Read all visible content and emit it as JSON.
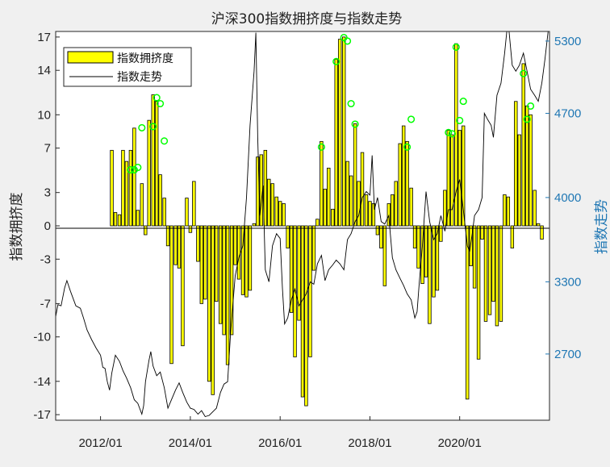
{
  "chart_data": {
    "type": "bar+line",
    "title": "沪深300指数拥挤度与指数走势",
    "left_axis": {
      "label": "指数拥挤度",
      "ticks": [
        17,
        14,
        10,
        7,
        3,
        0,
        -3,
        -7,
        -10,
        -14,
        -17
      ],
      "ylim": [
        -17.5,
        17.5
      ]
    },
    "right_axis": {
      "label": "指数走势",
      "ticks": [
        5300,
        4700,
        4000,
        3300,
        2700
      ],
      "ylim": [
        2150,
        5380
      ],
      "color": "#1f77b4"
    },
    "x_axis": {
      "ticks": [
        "2012/01",
        "2014/01",
        "2016/01",
        "2018/01",
        "2020/01"
      ],
      "xlim": [
        2011.0,
        2022.0
      ]
    },
    "legend": {
      "location": "top-left",
      "entries": [
        "指数拥挤度",
        "指数走势"
      ]
    },
    "bar_color": "#ffff00",
    "line_color": "#000000",
    "marker_color": "#00ff00",
    "crowding_bars": [
      {
        "t": 2012.25,
        "v": 6.8
      },
      {
        "t": 2012.33,
        "v": 1.2
      },
      {
        "t": 2012.42,
        "v": 1.0
      },
      {
        "t": 2012.5,
        "v": 6.8
      },
      {
        "t": 2012.58,
        "v": 5.8
      },
      {
        "t": 2012.67,
        "v": 6.8
      },
      {
        "t": 2012.75,
        "v": 8.8
      },
      {
        "t": 2012.83,
        "v": 1.4
      },
      {
        "t": 2012.92,
        "v": 3.8
      },
      {
        "t": 2013.0,
        "v": -0.8
      },
      {
        "t": 2013.08,
        "v": 9.5
      },
      {
        "t": 2013.17,
        "v": 11.8
      },
      {
        "t": 2013.25,
        "v": 11.2
      },
      {
        "t": 2013.33,
        "v": 4.6
      },
      {
        "t": 2013.42,
        "v": 2.5
      },
      {
        "t": 2013.5,
        "v": -1.8
      },
      {
        "t": 2013.58,
        "v": -12.4
      },
      {
        "t": 2013.67,
        "v": -3.5
      },
      {
        "t": 2013.75,
        "v": -3.8
      },
      {
        "t": 2013.83,
        "v": -10.8
      },
      {
        "t": 2013.92,
        "v": 2.5
      },
      {
        "t": 2014.0,
        "v": -0.6
      },
      {
        "t": 2014.08,
        "v": 4.0
      },
      {
        "t": 2014.17,
        "v": -3.2
      },
      {
        "t": 2014.25,
        "v": -7.0
      },
      {
        "t": 2014.33,
        "v": -6.6
      },
      {
        "t": 2014.42,
        "v": -14.0
      },
      {
        "t": 2014.5,
        "v": -15.2
      },
      {
        "t": 2014.58,
        "v": -6.8
      },
      {
        "t": 2014.67,
        "v": -8.8
      },
      {
        "t": 2014.75,
        "v": -9.8
      },
      {
        "t": 2014.83,
        "v": -12.5
      },
      {
        "t": 2014.92,
        "v": -9.8
      },
      {
        "t": 2015.0,
        "v": -3.5
      },
      {
        "t": 2015.08,
        "v": -4.8
      },
      {
        "t": 2015.17,
        "v": -6.2
      },
      {
        "t": 2015.25,
        "v": -6.4
      },
      {
        "t": 2015.33,
        "v": -5.8
      },
      {
        "t": 2015.42,
        "v": 0.2
      },
      {
        "t": 2015.5,
        "v": 6.2
      },
      {
        "t": 2015.58,
        "v": 6.4
      },
      {
        "t": 2015.67,
        "v": 6.8
      },
      {
        "t": 2015.75,
        "v": 4.2
      },
      {
        "t": 2015.83,
        "v": 3.8
      },
      {
        "t": 2015.92,
        "v": 2.6
      },
      {
        "t": 2016.0,
        "v": 2.2
      },
      {
        "t": 2016.08,
        "v": 2.0
      },
      {
        "t": 2016.17,
        "v": -2.0
      },
      {
        "t": 2016.25,
        "v": -7.8
      },
      {
        "t": 2016.33,
        "v": -11.8
      },
      {
        "t": 2016.42,
        "v": -8.5
      },
      {
        "t": 2016.5,
        "v": -15.4
      },
      {
        "t": 2016.58,
        "v": -16.2
      },
      {
        "t": 2016.67,
        "v": -11.8
      },
      {
        "t": 2016.75,
        "v": -4.0
      },
      {
        "t": 2016.83,
        "v": 0.6
      },
      {
        "t": 2016.92,
        "v": 7.6
      },
      {
        "t": 2017.0,
        "v": 3.3
      },
      {
        "t": 2017.08,
        "v": 5.2
      },
      {
        "t": 2017.17,
        "v": 1.5
      },
      {
        "t": 2017.25,
        "v": 15.0
      },
      {
        "t": 2017.33,
        "v": 16.8
      },
      {
        "t": 2017.42,
        "v": 17.0
      },
      {
        "t": 2017.5,
        "v": 5.8
      },
      {
        "t": 2017.58,
        "v": 4.5
      },
      {
        "t": 2017.67,
        "v": 9.2
      },
      {
        "t": 2017.75,
        "v": 4.0
      },
      {
        "t": 2017.83,
        "v": 6.6
      },
      {
        "t": 2017.92,
        "v": 2.8
      },
      {
        "t": 2018.0,
        "v": 2.2
      },
      {
        "t": 2018.08,
        "v": 2.0
      },
      {
        "t": 2018.17,
        "v": -0.8
      },
      {
        "t": 2018.25,
        "v": -2.0
      },
      {
        "t": 2018.33,
        "v": -5.4
      },
      {
        "t": 2018.42,
        "v": 2.0
      },
      {
        "t": 2018.5,
        "v": 2.8
      },
      {
        "t": 2018.58,
        "v": 4.0
      },
      {
        "t": 2018.67,
        "v": 7.4
      },
      {
        "t": 2018.75,
        "v": 9.0
      },
      {
        "t": 2018.83,
        "v": 7.6
      },
      {
        "t": 2018.92,
        "v": 3.4
      },
      {
        "t": 2019.0,
        "v": -2.0
      },
      {
        "t": 2019.08,
        "v": -3.8
      },
      {
        "t": 2019.17,
        "v": -5.2
      },
      {
        "t": 2019.25,
        "v": -4.6
      },
      {
        "t": 2019.33,
        "v": -8.8
      },
      {
        "t": 2019.42,
        "v": -6.4
      },
      {
        "t": 2019.5,
        "v": -5.8
      },
      {
        "t": 2019.58,
        "v": -1.4
      },
      {
        "t": 2019.67,
        "v": 3.2
      },
      {
        "t": 2019.75,
        "v": 8.6
      },
      {
        "t": 2019.83,
        "v": 8.2
      },
      {
        "t": 2019.92,
        "v": 16.4
      },
      {
        "t": 2020.0,
        "v": 8.6
      },
      {
        "t": 2020.08,
        "v": 9.0
      },
      {
        "t": 2020.17,
        "v": -15.6
      },
      {
        "t": 2020.25,
        "v": -3.6
      },
      {
        "t": 2020.33,
        "v": -5.6
      },
      {
        "t": 2020.42,
        "v": -12.0
      },
      {
        "t": 2020.5,
        "v": -1.2
      },
      {
        "t": 2020.58,
        "v": -8.6
      },
      {
        "t": 2020.67,
        "v": -8.0
      },
      {
        "t": 2020.75,
        "v": -6.8
      },
      {
        "t": 2020.83,
        "v": -9.0
      },
      {
        "t": 2020.92,
        "v": -8.6
      },
      {
        "t": 2021.0,
        "v": 2.8
      },
      {
        "t": 2021.08,
        "v": 2.6
      },
      {
        "t": 2021.17,
        "v": -2.0
      },
      {
        "t": 2021.25,
        "v": 11.2
      },
      {
        "t": 2021.33,
        "v": 8.2
      },
      {
        "t": 2021.42,
        "v": 14.6
      },
      {
        "t": 2021.5,
        "v": 10.8
      },
      {
        "t": 2021.58,
        "v": 10.0
      },
      {
        "t": 2021.67,
        "v": 3.2
      },
      {
        "t": 2021.75,
        "v": 0.2
      },
      {
        "t": 2021.83,
        "v": -1.2
      }
    ],
    "index_line": [
      [
        2011.0,
        3010
      ],
      [
        2011.05,
        3110
      ],
      [
        2011.12,
        3100
      ],
      [
        2011.2,
        3250
      ],
      [
        2011.25,
        3310
      ],
      [
        2011.33,
        3220
      ],
      [
        2011.45,
        3100
      ],
      [
        2011.55,
        3080
      ],
      [
        2011.62,
        3000
      ],
      [
        2011.7,
        2900
      ],
      [
        2011.8,
        2820
      ],
      [
        2011.9,
        2750
      ],
      [
        2012.0,
        2690
      ],
      [
        2012.05,
        2590
      ],
      [
        2012.1,
        2580
      ],
      [
        2012.15,
        2470
      ],
      [
        2012.2,
        2400
      ],
      [
        2012.25,
        2540
      ],
      [
        2012.33,
        2690
      ],
      [
        2012.42,
        2640
      ],
      [
        2012.5,
        2560
      ],
      [
        2012.58,
        2500
      ],
      [
        2012.67,
        2420
      ],
      [
        2012.75,
        2320
      ],
      [
        2012.83,
        2290
      ],
      [
        2012.92,
        2200
      ],
      [
        2012.96,
        2270
      ],
      [
        2013.0,
        2470
      ],
      [
        2013.08,
        2650
      ],
      [
        2013.12,
        2720
      ],
      [
        2013.17,
        2600
      ],
      [
        2013.25,
        2520
      ],
      [
        2013.33,
        2550
      ],
      [
        2013.42,
        2420
      ],
      [
        2013.5,
        2250
      ],
      [
        2013.58,
        2320
      ],
      [
        2013.67,
        2400
      ],
      [
        2013.75,
        2460
      ],
      [
        2013.83,
        2380
      ],
      [
        2013.92,
        2300
      ],
      [
        2014.0,
        2250
      ],
      [
        2014.08,
        2240
      ],
      [
        2014.17,
        2200
      ],
      [
        2014.25,
        2230
      ],
      [
        2014.33,
        2180
      ],
      [
        2014.42,
        2190
      ],
      [
        2014.5,
        2220
      ],
      [
        2014.58,
        2250
      ],
      [
        2014.67,
        2380
      ],
      [
        2014.75,
        2450
      ],
      [
        2014.83,
        2470
      ],
      [
        2014.9,
        2900
      ],
      [
        2015.0,
        3350
      ],
      [
        2015.08,
        3500
      ],
      [
        2015.17,
        3600
      ],
      [
        2015.25,
        4000
      ],
      [
        2015.33,
        4600
      ],
      [
        2015.42,
        5050
      ],
      [
        2015.46,
        5370
      ],
      [
        2015.5,
        4500
      ],
      [
        2015.55,
        3850
      ],
      [
        2015.62,
        4100
      ],
      [
        2015.67,
        3400
      ],
      [
        2015.75,
        3300
      ],
      [
        2015.83,
        3600
      ],
      [
        2015.92,
        3700
      ],
      [
        2016.0,
        3660
      ],
      [
        2016.05,
        3250
      ],
      [
        2016.1,
        2950
      ],
      [
        2016.17,
        3000
      ],
      [
        2016.25,
        3150
      ],
      [
        2016.33,
        3240
      ],
      [
        2016.42,
        3100
      ],
      [
        2016.5,
        3150
      ],
      [
        2016.58,
        3200
      ],
      [
        2016.67,
        3300
      ],
      [
        2016.75,
        3280
      ],
      [
        2016.83,
        3450
      ],
      [
        2016.92,
        3520
      ],
      [
        2017.0,
        3310
      ],
      [
        2017.08,
        3400
      ],
      [
        2017.17,
        3440
      ],
      [
        2017.25,
        3480
      ],
      [
        2017.33,
        3450
      ],
      [
        2017.42,
        3400
      ],
      [
        2017.5,
        3650
      ],
      [
        2017.58,
        3700
      ],
      [
        2017.67,
        3800
      ],
      [
        2017.75,
        3850
      ],
      [
        2017.83,
        4000
      ],
      [
        2017.92,
        4050
      ],
      [
        2018.0,
        4020
      ],
      [
        2018.05,
        4350
      ],
      [
        2018.1,
        3900
      ],
      [
        2018.17,
        4000
      ],
      [
        2018.25,
        3800
      ],
      [
        2018.33,
        3780
      ],
      [
        2018.42,
        3850
      ],
      [
        2018.5,
        3500
      ],
      [
        2018.58,
        3400
      ],
      [
        2018.67,
        3330
      ],
      [
        2018.75,
        3270
      ],
      [
        2018.83,
        3200
      ],
      [
        2018.92,
        3150
      ],
      [
        2019.0,
        3000
      ],
      [
        2019.05,
        3050
      ],
      [
        2019.1,
        3300
      ],
      [
        2019.17,
        3600
      ],
      [
        2019.25,
        4050
      ],
      [
        2019.33,
        3800
      ],
      [
        2019.42,
        3650
      ],
      [
        2019.5,
        3700
      ],
      [
        2019.58,
        3850
      ],
      [
        2019.67,
        3720
      ],
      [
        2019.75,
        3900
      ],
      [
        2019.83,
        3900
      ],
      [
        2019.92,
        4050
      ],
      [
        2020.0,
        4150
      ],
      [
        2020.08,
        3900
      ],
      [
        2020.17,
        3600
      ],
      [
        2020.22,
        3550
      ],
      [
        2020.28,
        3700
      ],
      [
        2020.33,
        3850
      ],
      [
        2020.42,
        3900
      ],
      [
        2020.5,
        4000
      ],
      [
        2020.55,
        4700
      ],
      [
        2020.62,
        4650
      ],
      [
        2020.7,
        4600
      ],
      [
        2020.75,
        4500
      ],
      [
        2020.83,
        4850
      ],
      [
        2020.92,
        4950
      ],
      [
        2021.0,
        5200
      ],
      [
        2021.05,
        5700
      ],
      [
        2021.1,
        5450
      ],
      [
        2021.17,
        5100
      ],
      [
        2021.25,
        5050
      ],
      [
        2021.33,
        5100
      ],
      [
        2021.42,
        5200
      ],
      [
        2021.5,
        5050
      ],
      [
        2021.58,
        4900
      ],
      [
        2021.67,
        4850
      ],
      [
        2021.75,
        4800
      ],
      [
        2021.83,
        4950
      ],
      [
        2021.9,
        5150
      ],
      [
        2021.97,
        5420
      ]
    ],
    "circle_markers": [
      {
        "t": 2012.67,
        "y": 4230
      },
      {
        "t": 2012.75,
        "y": 4230
      },
      {
        "t": 2012.83,
        "y": 4250
      },
      {
        "t": 2012.92,
        "y": 4580
      },
      {
        "t": 2013.17,
        "y": 4590
      },
      {
        "t": 2013.25,
        "y": 4830
      },
      {
        "t": 2013.33,
        "y": 4780
      },
      {
        "t": 2013.42,
        "y": 4470
      },
      {
        "t": 2016.92,
        "y": 4420
      },
      {
        "t": 2017.25,
        "y": 5130
      },
      {
        "t": 2017.42,
        "y": 5330
      },
      {
        "t": 2017.5,
        "y": 5300
      },
      {
        "t": 2017.58,
        "y": 4780
      },
      {
        "t": 2017.67,
        "y": 4610
      },
      {
        "t": 2018.83,
        "y": 4420
      },
      {
        "t": 2018.92,
        "y": 4650
      },
      {
        "t": 2019.75,
        "y": 4540
      },
      {
        "t": 2019.83,
        "y": 4530
      },
      {
        "t": 2019.92,
        "y": 5250
      },
      {
        "t": 2020.0,
        "y": 4640
      },
      {
        "t": 2020.08,
        "y": 4800
      },
      {
        "t": 2021.42,
        "y": 5030
      },
      {
        "t": 2021.5,
        "y": 4650
      },
      {
        "t": 2021.58,
        "y": 4760
      }
    ]
  }
}
